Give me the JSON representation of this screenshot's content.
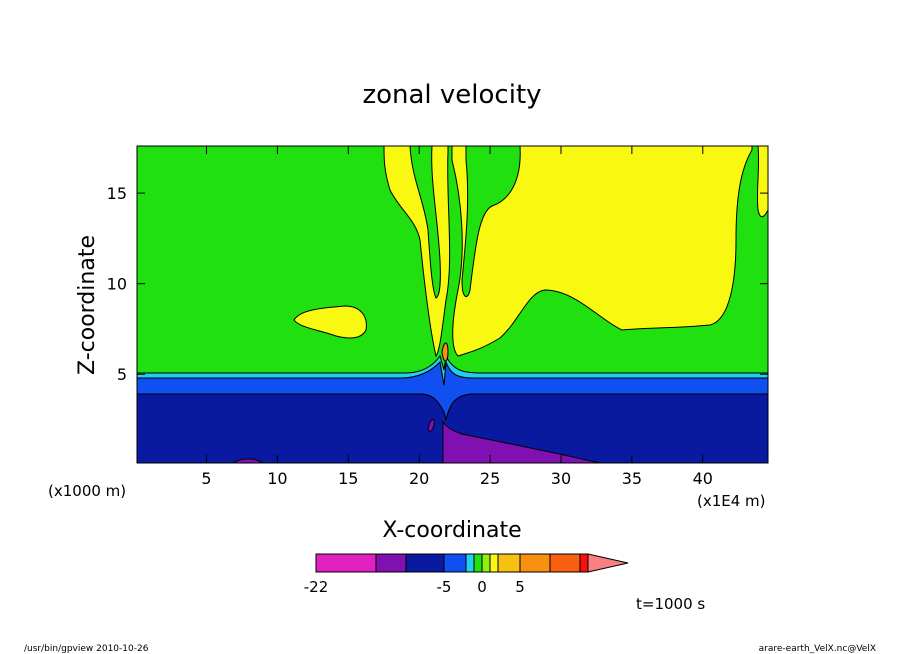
{
  "chart_data": {
    "type": "contour",
    "title": "zonal velocity",
    "xlabel": "X-coordinate",
    "ylabel": "Z-coordinate",
    "x_unit_note_left": "(x1000 m)",
    "x_unit_note_right": "(x1E4 m)",
    "xlim": [
      0.1,
      44.6
    ],
    "ylim": [
      0.1,
      17.6
    ],
    "x_ticks": [
      5,
      10,
      15,
      20,
      25,
      30,
      35,
      40
    ],
    "y_ticks": [
      5,
      10,
      15
    ],
    "colorbar": {
      "tick_labels": [
        "-22",
        "-5",
        "0",
        "5"
      ],
      "tick_values": [
        -22,
        -5,
        0,
        5
      ]
    },
    "time_label": "t=1000 s",
    "colors": {
      "magenta": "#e020c0",
      "purple": "#8010b0",
      "navy": "#0a1aa0",
      "blue": "#1050f0",
      "cyan": "#20d0f0",
      "green": "#20e010",
      "lime": "#90ee10",
      "yellow": "#f8f810",
      "amber": "#f8c010",
      "orange": "#f89010",
      "darkorange": "#f86010",
      "red": "#f81010",
      "pink": "#f88080"
    }
  },
  "footer": {
    "left": "/usr/bin/gpview   2010-10-26",
    "right": "arare-earth_VelX.nc@VelX"
  }
}
